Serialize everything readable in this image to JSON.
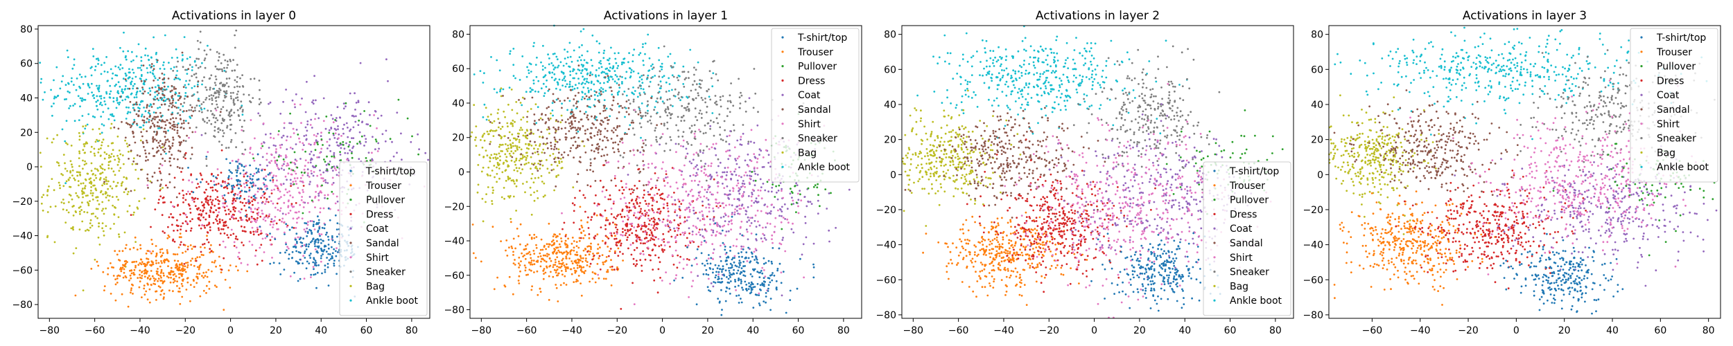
{
  "chart_data": [
    {
      "type": "scatter",
      "title": "Activations in layer 0",
      "xlabel": "",
      "ylabel": "",
      "xlim": [
        -85,
        88
      ],
      "ylim": [
        -88,
        82
      ],
      "xticks": [
        "−80",
        "−60",
        "−40",
        "−20",
        "0",
        "20",
        "40",
        "60",
        "80"
      ],
      "yticks": [
        "−80",
        "−60",
        "−40",
        "−20",
        "0",
        "20",
        "40",
        "60",
        "80"
      ],
      "xtick_values": [
        -80,
        -60,
        -40,
        -20,
        0,
        20,
        40,
        60,
        80
      ],
      "ytick_values": [
        -80,
        -60,
        -40,
        -20,
        0,
        20,
        40,
        60,
        80
      ],
      "legend_position": "lower right",
      "clusters": [
        {
          "series": "T-shirt/top",
          "cx": 40,
          "cy": -48,
          "sx": 9,
          "sy": 8,
          "n": 240
        },
        {
          "series": "T-shirt/top",
          "cx": 5,
          "cy": -8,
          "sx": 8,
          "sy": 6,
          "n": 90
        },
        {
          "series": "Trouser",
          "cx": -30,
          "cy": -60,
          "sx": 13,
          "sy": 8,
          "n": 380
        },
        {
          "series": "Pullover",
          "cx": 45,
          "cy": 5,
          "sx": 16,
          "sy": 12,
          "n": 80
        },
        {
          "series": "Dress",
          "cx": -5,
          "cy": -25,
          "sx": 13,
          "sy": 12,
          "n": 360
        },
        {
          "series": "Coat",
          "cx": 45,
          "cy": 10,
          "sx": 18,
          "sy": 18,
          "n": 300
        },
        {
          "series": "Sandal",
          "cx": -30,
          "cy": 25,
          "sx": 8,
          "sy": 16,
          "n": 300
        },
        {
          "series": "Shirt",
          "cx": 25,
          "cy": -15,
          "sx": 20,
          "sy": 20,
          "n": 400
        },
        {
          "series": "Sneaker",
          "cx": -5,
          "cy": 40,
          "sx": 8,
          "sy": 16,
          "n": 260
        },
        {
          "series": "Bag",
          "cx": -60,
          "cy": -10,
          "sx": 10,
          "sy": 16,
          "n": 350
        },
        {
          "series": "Ankle boot",
          "cx": -45,
          "cy": 45,
          "sx": 18,
          "sy": 13,
          "n": 420
        }
      ]
    },
    {
      "type": "scatter",
      "title": "Activations in layer 1",
      "xlabel": "",
      "ylabel": "",
      "xlim": [
        -85,
        88
      ],
      "ylim": [
        -85,
        85
      ],
      "xticks": [
        "−80",
        "−60",
        "−40",
        "−20",
        "0",
        "20",
        "40",
        "60",
        "80"
      ],
      "yticks": [
        "−80",
        "−60",
        "−40",
        "−20",
        "0",
        "20",
        "40",
        "60",
        "80"
      ],
      "xtick_values": [
        -80,
        -60,
        -40,
        -20,
        0,
        20,
        40,
        60,
        80
      ],
      "ytick_values": [
        -80,
        -60,
        -40,
        -20,
        0,
        20,
        40,
        60,
        80
      ],
      "legend_position": "upper right",
      "clusters": [
        {
          "series": "T-shirt/top",
          "cx": 35,
          "cy": -60,
          "sx": 10,
          "sy": 9,
          "n": 260
        },
        {
          "series": "Trouser",
          "cx": -45,
          "cy": -50,
          "sx": 12,
          "sy": 9,
          "n": 380
        },
        {
          "series": "Pullover",
          "cx": 60,
          "cy": 0,
          "sx": 10,
          "sy": 12,
          "n": 70
        },
        {
          "series": "Dress",
          "cx": -10,
          "cy": -30,
          "sx": 12,
          "sy": 14,
          "n": 380
        },
        {
          "series": "Coat",
          "cx": 35,
          "cy": -10,
          "sx": 18,
          "sy": 18,
          "n": 320
        },
        {
          "series": "Sandal",
          "cx": -35,
          "cy": 25,
          "sx": 14,
          "sy": 12,
          "n": 320
        },
        {
          "series": "Shirt",
          "cx": 20,
          "cy": -20,
          "sx": 22,
          "sy": 22,
          "n": 420
        },
        {
          "series": "Sneaker",
          "cx": 10,
          "cy": 35,
          "sx": 16,
          "sy": 14,
          "n": 260
        },
        {
          "series": "Bag",
          "cx": -65,
          "cy": 10,
          "sx": 10,
          "sy": 14,
          "n": 330
        },
        {
          "series": "Ankle boot",
          "cx": -30,
          "cy": 55,
          "sx": 20,
          "sy": 10,
          "n": 420
        }
      ]
    },
    {
      "type": "scatter",
      "title": "Activations in layer 2",
      "xlabel": "",
      "ylabel": "",
      "xlim": [
        -85,
        88
      ],
      "ylim": [
        -82,
        85
      ],
      "xticks": [
        "−80",
        "−60",
        "−40",
        "−20",
        "0",
        "20",
        "40",
        "60",
        "80"
      ],
      "yticks": [
        "−80",
        "−60",
        "−40",
        "−20",
        "0",
        "20",
        "40",
        "60",
        "80"
      ],
      "xtick_values": [
        -80,
        -60,
        -40,
        -20,
        0,
        20,
        40,
        60,
        80
      ],
      "ytick_values": [
        -80,
        -60,
        -40,
        -20,
        0,
        20,
        40,
        60,
        80
      ],
      "legend_position": "lower right",
      "clusters": [
        {
          "series": "T-shirt/top",
          "cx": 30,
          "cy": -55,
          "sx": 10,
          "sy": 9,
          "n": 260
        },
        {
          "series": "Trouser",
          "cx": -40,
          "cy": -45,
          "sx": 13,
          "sy": 10,
          "n": 380
        },
        {
          "series": "Pullover",
          "cx": 60,
          "cy": 5,
          "sx": 10,
          "sy": 12,
          "n": 70
        },
        {
          "series": "Dress",
          "cx": -15,
          "cy": -30,
          "sx": 13,
          "sy": 13,
          "n": 380
        },
        {
          "series": "Coat",
          "cx": 30,
          "cy": -10,
          "sx": 20,
          "sy": 16,
          "n": 320
        },
        {
          "series": "Sandal",
          "cx": -35,
          "cy": 10,
          "sx": 15,
          "sy": 12,
          "n": 320
        },
        {
          "series": "Shirt",
          "cx": 15,
          "cy": -20,
          "sx": 22,
          "sy": 22,
          "n": 420
        },
        {
          "series": "Sneaker",
          "cx": 25,
          "cy": 35,
          "sx": 12,
          "sy": 14,
          "n": 260
        },
        {
          "series": "Bag",
          "cx": -65,
          "cy": 10,
          "sx": 10,
          "sy": 12,
          "n": 330
        },
        {
          "series": "Ankle boot",
          "cx": -25,
          "cy": 55,
          "sx": 20,
          "sy": 11,
          "n": 420
        }
      ]
    },
    {
      "type": "scatter",
      "title": "Activations in layer 3",
      "xlabel": "",
      "ylabel": "",
      "xlim": [
        -78,
        85
      ],
      "ylim": [
        -82,
        85
      ],
      "xticks": [
        "−60",
        "−40",
        "−20",
        "0",
        "20",
        "40",
        "60",
        "80"
      ],
      "yticks": [
        "−80",
        "−60",
        "−40",
        "−20",
        "0",
        "20",
        "40",
        "60",
        "80"
      ],
      "xtick_values": [
        -60,
        -40,
        -20,
        0,
        20,
        40,
        60,
        80
      ],
      "ytick_values": [
        -80,
        -60,
        -40,
        -20,
        0,
        20,
        40,
        60,
        80
      ],
      "legend_position": "upper right",
      "clusters": [
        {
          "series": "T-shirt/top",
          "cx": 20,
          "cy": -60,
          "sx": 10,
          "sy": 9,
          "n": 260
        },
        {
          "series": "Trouser",
          "cx": -45,
          "cy": -40,
          "sx": 12,
          "sy": 11,
          "n": 380
        },
        {
          "series": "Pullover",
          "cx": 60,
          "cy": -5,
          "sx": 12,
          "sy": 12,
          "n": 80
        },
        {
          "series": "Dress",
          "cx": -10,
          "cy": -30,
          "sx": 14,
          "sy": 12,
          "n": 380
        },
        {
          "series": "Coat",
          "cx": 40,
          "cy": -20,
          "sx": 18,
          "sy": 14,
          "n": 320
        },
        {
          "series": "Sandal",
          "cx": -35,
          "cy": 15,
          "sx": 14,
          "sy": 12,
          "n": 320
        },
        {
          "series": "Shirt",
          "cx": 25,
          "cy": -5,
          "sx": 20,
          "sy": 18,
          "n": 420
        },
        {
          "series": "Sneaker",
          "cx": 40,
          "cy": 35,
          "sx": 15,
          "sy": 12,
          "n": 260
        },
        {
          "series": "Bag",
          "cx": -60,
          "cy": 10,
          "sx": 10,
          "sy": 12,
          "n": 330
        },
        {
          "series": "Ankle boot",
          "cx": -5,
          "cy": 60,
          "sx": 28,
          "sy": 10,
          "n": 420
        }
      ]
    }
  ],
  "legend": {
    "series": [
      {
        "name": "T-shirt/top",
        "color": "#1f77b4"
      },
      {
        "name": "Trouser",
        "color": "#ff7f0e"
      },
      {
        "name": "Pullover",
        "color": "#2ca02c"
      },
      {
        "name": "Dress",
        "color": "#d62728"
      },
      {
        "name": "Coat",
        "color": "#9467bd"
      },
      {
        "name": "Sandal",
        "color": "#8c564b"
      },
      {
        "name": "Shirt",
        "color": "#e377c2"
      },
      {
        "name": "Sneaker",
        "color": "#7f7f7f"
      },
      {
        "name": "Bag",
        "color": "#bcbd22"
      },
      {
        "name": "Ankle boot",
        "color": "#17becf"
      }
    ]
  }
}
